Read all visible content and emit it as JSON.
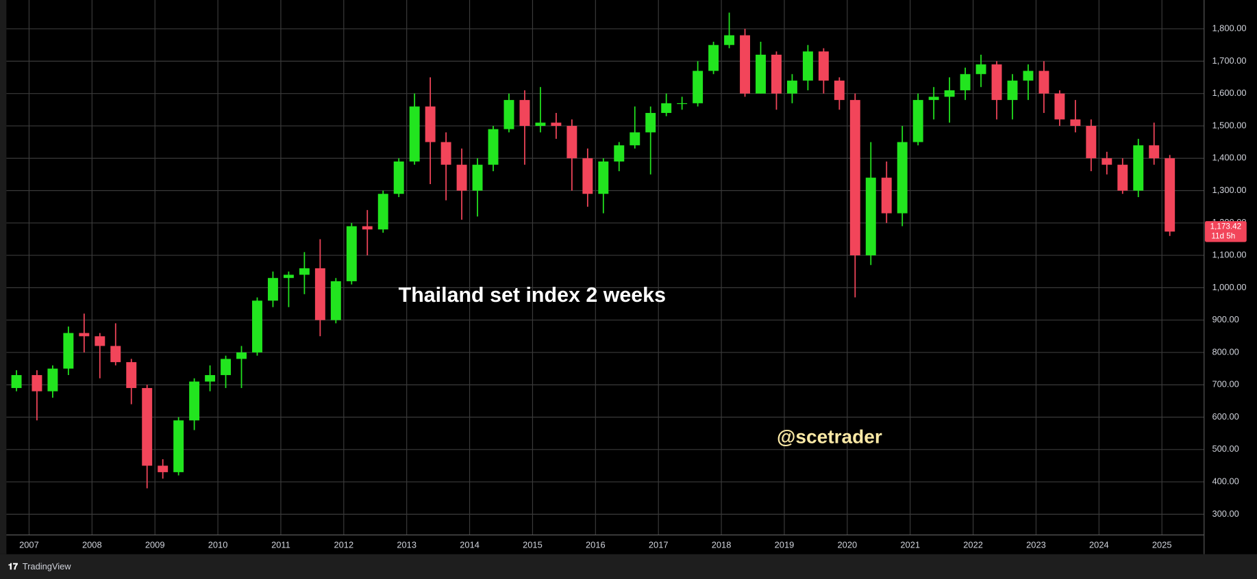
{
  "chart_data": {
    "type": "candlestick",
    "title": "Thailand set index 2 weeks",
    "watermark": "@scetrader",
    "up_color": "#22e51f",
    "down_color": "#f2455a",
    "grid": true,
    "x": [
      2006.8,
      2007.125,
      2007.375,
      2007.625,
      2007.875,
      2008.125,
      2008.375,
      2008.625,
      2008.875,
      2009.125,
      2009.375,
      2009.625,
      2009.875,
      2010.125,
      2010.375,
      2010.625,
      2010.875,
      2011.125,
      2011.375,
      2011.625,
      2011.875,
      2012.125,
      2012.375,
      2012.625,
      2012.875,
      2013.125,
      2013.375,
      2013.625,
      2013.875,
      2014.125,
      2014.375,
      2014.625,
      2014.875,
      2015.125,
      2015.375,
      2015.625,
      2015.875,
      2016.125,
      2016.375,
      2016.625,
      2016.875,
      2017.125,
      2017.375,
      2017.625,
      2017.875,
      2018.125,
      2018.375,
      2018.625,
      2018.875,
      2019.125,
      2019.375,
      2019.625,
      2019.875,
      2020.125,
      2020.375,
      2020.625,
      2020.875,
      2021.125,
      2021.375,
      2021.625,
      2021.875,
      2022.125,
      2022.375,
      2022.625,
      2022.875,
      2023.125,
      2023.375,
      2023.625,
      2023.875,
      2024.125,
      2024.375,
      2024.625,
      2024.875,
      2025.125
    ],
    "open": [
      690,
      730,
      680,
      750,
      860,
      850,
      820,
      770,
      690,
      450,
      430,
      590,
      710,
      730,
      780,
      800,
      960,
      1030,
      1040,
      1060,
      900,
      1020,
      1190,
      1180,
      1290,
      1390,
      1560,
      1450,
      1380,
      1300,
      1380,
      1490,
      1580,
      1500,
      1510,
      1500,
      1400,
      1290,
      1390,
      1440,
      1480,
      1540,
      1570,
      1570,
      1670,
      1750,
      1780,
      1600,
      1720,
      1600,
      1640,
      1730,
      1640,
      1580,
      1100,
      1340,
      1230,
      1450,
      1580,
      1590,
      1610,
      1660,
      1690,
      1580,
      1640,
      1670,
      1600,
      1520,
      1500,
      1400,
      1380,
      1300,
      1440,
      1400
    ],
    "high": [
      745,
      745,
      760,
      880,
      920,
      860,
      890,
      780,
      700,
      470,
      600,
      720,
      760,
      790,
      820,
      970,
      1050,
      1050,
      1110,
      1150,
      1030,
      1200,
      1240,
      1300,
      1400,
      1600,
      1650,
      1480,
      1430,
      1400,
      1500,
      1600,
      1610,
      1620,
      1540,
      1520,
      1430,
      1400,
      1450,
      1560,
      1560,
      1600,
      1590,
      1700,
      1760,
      1850,
      1800,
      1760,
      1730,
      1660,
      1750,
      1740,
      1650,
      1600,
      1450,
      1390,
      1500,
      1600,
      1620,
      1650,
      1680,
      1720,
      1700,
      1660,
      1690,
      1700,
      1610,
      1580,
      1520,
      1420,
      1400,
      1460,
      1510,
      1410
    ],
    "low": [
      680,
      590,
      660,
      730,
      800,
      720,
      760,
      640,
      380,
      410,
      420,
      560,
      680,
      690,
      690,
      790,
      940,
      940,
      980,
      850,
      890,
      1010,
      1100,
      1170,
      1280,
      1380,
      1320,
      1270,
      1210,
      1220,
      1360,
      1480,
      1380,
      1480,
      1460,
      1300,
      1250,
      1230,
      1360,
      1430,
      1350,
      1530,
      1550,
      1560,
      1660,
      1740,
      1590,
      1600,
      1550,
      1570,
      1610,
      1600,
      1550,
      970,
      1070,
      1200,
      1190,
      1440,
      1520,
      1510,
      1580,
      1620,
      1520,
      1520,
      1580,
      1540,
      1500,
      1480,
      1360,
      1350,
      1290,
      1280,
      1380,
      1160
    ],
    "close": [
      730,
      680,
      750,
      860,
      850,
      820,
      770,
      690,
      450,
      430,
      590,
      710,
      730,
      780,
      800,
      960,
      1030,
      1040,
      1060,
      900,
      1020,
      1190,
      1180,
      1290,
      1390,
      1560,
      1450,
      1380,
      1300,
      1380,
      1490,
      1580,
      1500,
      1510,
      1500,
      1400,
      1290,
      1390,
      1440,
      1480,
      1540,
      1570,
      1570,
      1670,
      1750,
      1780,
      1600,
      1720,
      1600,
      1640,
      1730,
      1640,
      1580,
      1100,
      1340,
      1230,
      1450,
      1580,
      1590,
      1610,
      1660,
      1690,
      1580,
      1640,
      1670,
      1600,
      1520,
      1500,
      1400,
      1380,
      1300,
      1440,
      1400,
      1173.42
    ],
    "xlim": [
      2006.64,
      2025.67
    ],
    "xticks": [
      2007,
      2008,
      2009,
      2010,
      2011,
      2012,
      2013,
      2014,
      2015,
      2016,
      2017,
      2018,
      2019,
      2020,
      2021,
      2022,
      2023,
      2024,
      2025
    ],
    "ylim": [
      236,
      1889
    ],
    "yticks": [
      {
        "value": 300,
        "label": "300.00"
      },
      {
        "value": 400,
        "label": "400.00"
      },
      {
        "value": 500,
        "label": "500.00"
      },
      {
        "value": 600,
        "label": "600.00"
      },
      {
        "value": 700,
        "label": "700.00"
      },
      {
        "value": 800,
        "label": "800.00"
      },
      {
        "value": 900,
        "label": "900.00"
      },
      {
        "value": 1000,
        "label": "1,000.00"
      },
      {
        "value": 1100,
        "label": "1,100.00"
      },
      {
        "value": 1200,
        "label": "1,200.00"
      },
      {
        "value": 1300,
        "label": "1,300.00"
      },
      {
        "value": 1400,
        "label": "1,400.00"
      },
      {
        "value": 1500,
        "label": "1,500.00"
      },
      {
        "value": 1600,
        "label": "1,600.00"
      },
      {
        "value": 1700,
        "label": "1,700.00"
      },
      {
        "value": 1800,
        "label": "1,800.00"
      }
    ],
    "last_price": {
      "value": 1173.42,
      "label": "1,173.42"
    },
    "countdown": "11d 5h"
  },
  "footer": {
    "brand": "TradingView"
  }
}
